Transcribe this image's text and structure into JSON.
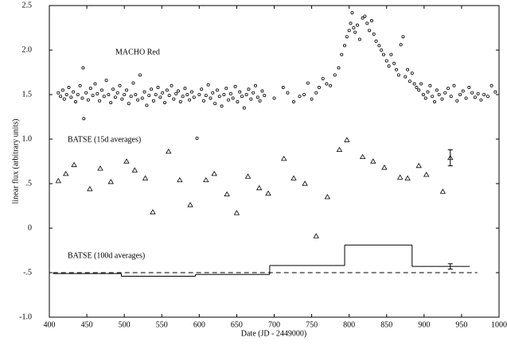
{
  "chart_data": {
    "type": "scatter",
    "x_label": "Date (JD - 2449000)",
    "y_label": "linear flux (arbitrary units)",
    "xlim": [
      400,
      1000
    ],
    "xticks": [
      400,
      450,
      500,
      550,
      600,
      650,
      700,
      750,
      800,
      850,
      900,
      950,
      1000
    ],
    "ylim": [
      -1.0,
      2.5
    ],
    "yticks": [
      {
        "value": -1.0,
        "label": "-1.0"
      },
      {
        "value": -0.5,
        "label": "-.5"
      },
      0,
      {
        "value": 0.5,
        "label": ".5"
      },
      {
        "value": 1.0,
        "label": "1.0"
      },
      1.5,
      {
        "value": 2.0,
        "label": "2.0"
      },
      2.5
    ],
    "hline": {
      "value": -0.5,
      "x": [
        405,
        971
      ]
    },
    "series": [
      {
        "name": "MACHO Red",
        "marker": "circle",
        "color": "#000000",
        "x": [
          412,
          415,
          418,
          420,
          423,
          426,
          429,
          432,
          435,
          438,
          441,
          444,
          445,
          446,
          449,
          452,
          455,
          458,
          461,
          464,
          467,
          470,
          473,
          476,
          479,
          482,
          485,
          488,
          491,
          494,
          497,
          500,
          503,
          506,
          509,
          512,
          515,
          518,
          521,
          524,
          527,
          530,
          533,
          536,
          539,
          542,
          545,
          548,
          551,
          554,
          557,
          560,
          563,
          566,
          569,
          572,
          575,
          578,
          581,
          584,
          587,
          590,
          593,
          597,
          600,
          603,
          606,
          609,
          612,
          615,
          618,
          621,
          624,
          627,
          630,
          633,
          636,
          639,
          642,
          645,
          648,
          651,
          654,
          657,
          660,
          663,
          666,
          669,
          672,
          675,
          678,
          681,
          684,
          687,
          700,
          712,
          718,
          726,
          734,
          740,
          745,
          750,
          756,
          760,
          765,
          770,
          775,
          781,
          786,
          790,
          794,
          797,
          800,
          802,
          804,
          806,
          808,
          811,
          814,
          818,
          821,
          824,
          827,
          830,
          833,
          836,
          840,
          843,
          846,
          850,
          853,
          856,
          860,
          863,
          866,
          869,
          872,
          875,
          878,
          881,
          884,
          887,
          890,
          893,
          896,
          899,
          902,
          905,
          908,
          911,
          914,
          917,
          920,
          924,
          928,
          932,
          936,
          940,
          944,
          948,
          952,
          956,
          960,
          964,
          968,
          972,
          976,
          980,
          985,
          990,
          995
        ],
        "values": [
          1.52,
          1.48,
          1.55,
          1.45,
          1.5,
          1.58,
          1.47,
          1.53,
          1.42,
          1.5,
          1.6,
          1.46,
          1.8,
          1.23,
          1.52,
          1.44,
          1.57,
          1.49,
          1.62,
          1.51,
          1.43,
          1.55,
          1.48,
          1.66,
          1.5,
          1.41,
          1.56,
          1.47,
          1.52,
          1.6,
          1.45,
          1.5,
          1.55,
          1.4,
          1.48,
          1.63,
          1.5,
          1.44,
          1.72,
          1.46,
          1.53,
          1.38,
          1.49,
          1.56,
          1.43,
          1.5,
          1.58,
          1.47,
          1.52,
          1.41,
          1.55,
          1.49,
          1.6,
          1.45,
          1.51,
          1.54,
          1.42,
          1.48,
          1.57,
          1.5,
          1.44,
          1.53,
          1.47,
          1.01,
          1.5,
          1.56,
          1.43,
          1.49,
          1.61,
          1.46,
          1.52,
          1.4,
          1.55,
          1.48,
          1.37,
          1.5,
          1.57,
          1.44,
          1.51,
          1.46,
          1.59,
          1.42,
          1.53,
          1.48,
          1.35,
          1.5,
          1.56,
          1.45,
          1.52,
          1.6,
          1.47,
          1.43,
          1.54,
          1.49,
          1.46,
          1.58,
          1.52,
          1.42,
          1.48,
          1.5,
          1.63,
          1.45,
          1.52,
          1.58,
          1.68,
          1.62,
          1.6,
          1.72,
          1.8,
          1.95,
          2.05,
          2.15,
          2.22,
          2.3,
          2.42,
          2.25,
          2.2,
          2.28,
          2.12,
          2.36,
          2.38,
          2.3,
          2.22,
          2.33,
          2.18,
          2.1,
          2.05,
          2.0,
          1.95,
          1.88,
          1.82,
          1.95,
          1.85,
          1.78,
          1.72,
          2.06,
          2.15,
          1.7,
          1.78,
          1.65,
          1.74,
          1.62,
          1.58,
          1.55,
          1.62,
          1.5,
          1.46,
          1.53,
          1.6,
          1.48,
          1.42,
          1.55,
          1.5,
          1.45,
          1.52,
          1.57,
          1.48,
          1.6,
          1.43,
          1.5,
          1.54,
          1.46,
          1.58,
          1.52,
          1.47,
          1.51,
          1.44,
          1.5,
          1.48,
          1.6,
          1.53
        ]
      },
      {
        "name": "BATSE (15d averages)",
        "marker": "triangle",
        "color": "#000000",
        "x": [
          412,
          422,
          433,
          454,
          468,
          482,
          503,
          514,
          528,
          538,
          559,
          574,
          588,
          609,
          620,
          637,
          650,
          665,
          680,
          692,
          713,
          726,
          741,
          756,
          771,
          787,
          797,
          818,
          832,
          847,
          868,
          878,
          893,
          903,
          925,
          935
        ],
        "values": [
          0.53,
          0.61,
          0.71,
          0.44,
          0.67,
          0.52,
          0.75,
          0.65,
          0.56,
          0.18,
          0.86,
          0.54,
          0.26,
          0.54,
          0.61,
          0.38,
          0.17,
          0.58,
          0.45,
          0.39,
          0.78,
          0.56,
          0.5,
          -0.09,
          0.35,
          0.88,
          0.99,
          0.8,
          0.75,
          0.68,
          0.57,
          0.56,
          0.7,
          0.6,
          0.41,
          0.79
        ],
        "error_bar": {
          "x": 935,
          "value": 0.79,
          "error": 0.09
        }
      },
      {
        "name": "BATSE (100d averages)",
        "marker": "step",
        "color": "#000000",
        "bins": [
          405,
          496,
          595,
          694,
          794,
          884,
          961
        ],
        "values": [
          -0.51,
          -0.54,
          -0.52,
          -0.42,
          -0.19,
          -0.43
        ],
        "error_bar": {
          "x": 935,
          "value": -0.43,
          "error": 0.03
        }
      }
    ]
  }
}
